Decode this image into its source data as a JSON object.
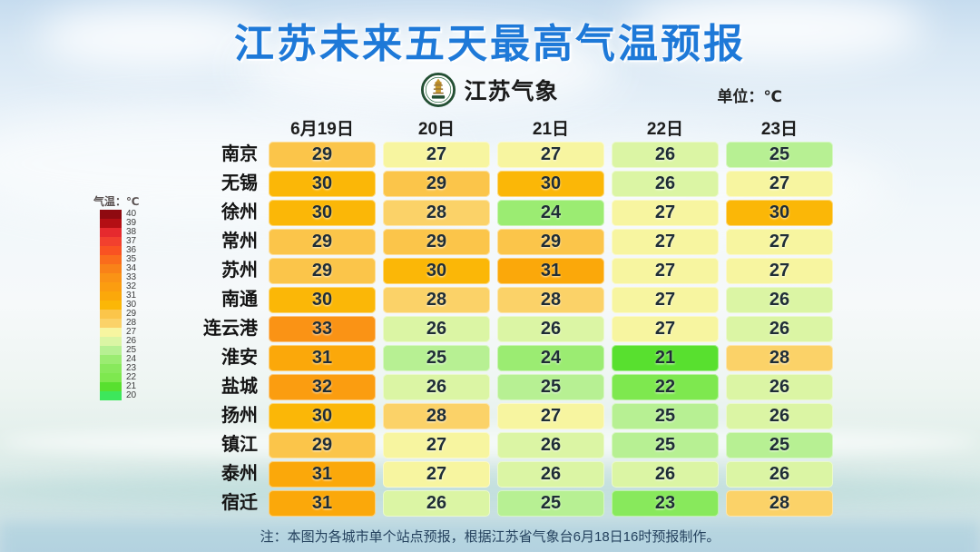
{
  "header": {
    "logo_text": "江苏气象",
    "unit_label": "单位：℃"
  },
  "chart_data": {
    "type": "heatmap",
    "title": "江苏未来五天最高气温预报",
    "unit": "℃",
    "x_labels": [
      "6月19日",
      "20日",
      "21日",
      "22日",
      "23日"
    ],
    "rows": [
      {
        "city": "南京",
        "temps": [
          29,
          27,
          27,
          26,
          25
        ]
      },
      {
        "city": "无锡",
        "temps": [
          30,
          29,
          30,
          26,
          27
        ]
      },
      {
        "city": "徐州",
        "temps": [
          30,
          28,
          24,
          27,
          30
        ]
      },
      {
        "city": "常州",
        "temps": [
          29,
          29,
          29,
          27,
          27
        ]
      },
      {
        "city": "苏州",
        "temps": [
          29,
          30,
          31,
          27,
          27
        ]
      },
      {
        "city": "南通",
        "temps": [
          30,
          28,
          28,
          27,
          26
        ]
      },
      {
        "city": "连云港",
        "temps": [
          33,
          26,
          26,
          27,
          26
        ]
      },
      {
        "city": "淮安",
        "temps": [
          31,
          25,
          24,
          21,
          28
        ]
      },
      {
        "city": "盐城",
        "temps": [
          32,
          26,
          25,
          22,
          26
        ]
      },
      {
        "city": "扬州",
        "temps": [
          30,
          28,
          27,
          25,
          26
        ]
      },
      {
        "city": "镇江",
        "temps": [
          29,
          27,
          26,
          25,
          25
        ]
      },
      {
        "city": "泰州",
        "temps": [
          31,
          27,
          26,
          26,
          26
        ]
      },
      {
        "city": "宿迁",
        "temps": [
          31,
          26,
          25,
          23,
          28
        ]
      }
    ],
    "colorbar": {
      "label": "气温：℃",
      "min": 20,
      "max": 40,
      "position": "left"
    },
    "legend_position": "left",
    "grid": false
  },
  "temp_colors": {
    "20": "#3de75b",
    "21": "#58e02f",
    "22": "#7ee84f",
    "23": "#88e95c",
    "24": "#9bec72",
    "25": "#b7f093",
    "26": "#dbf5a4",
    "27": "#f7f5a0",
    "28": "#fbd268",
    "29": "#fbc54a",
    "30": "#fbb707",
    "31": "#fba80a",
    "32": "#fb9d10",
    "33": "#fa9315",
    "34": "#f98218",
    "35": "#fa6c1c",
    "36": "#f95222",
    "37": "#f2402e",
    "38": "#e62a2e",
    "39": "#b40f14",
    "40": "#8f0a10"
  },
  "footer": {
    "note": "注：本图为各城市单个站点预报，根据江苏省气象台6月18日16时预报制作。"
  },
  "accent": {
    "title_color": "#1e79d8"
  }
}
